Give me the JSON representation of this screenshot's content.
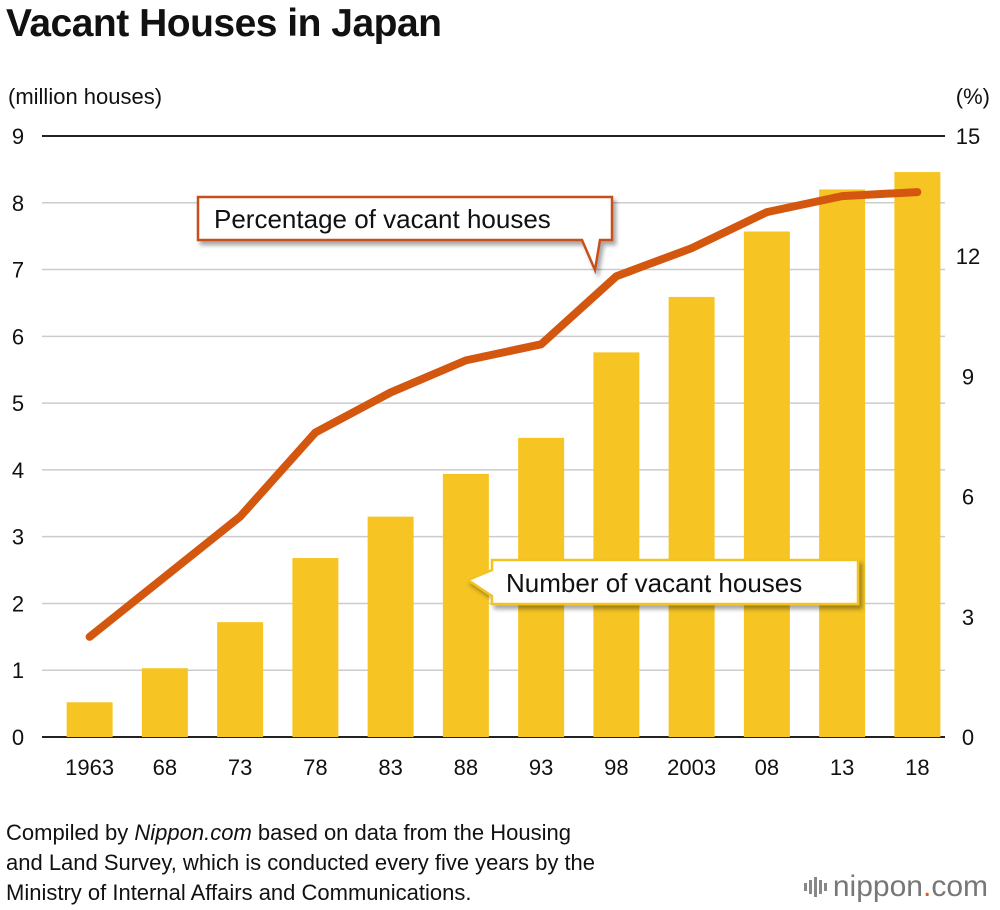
{
  "title": "Vacant Houses in Japan",
  "footer": {
    "line1_pre": "Compiled by ",
    "line1_italic": "Nippon.com",
    "line1_post": " based on data from the Housing",
    "line2": "and Land Survey, which is conducted every five years by the",
    "line3": "Ministry of Internal Affairs and Communications."
  },
  "logo": {
    "name": "nippon",
    "dot": ".",
    "suffix": "com",
    "icon": "sound-wave-icon"
  },
  "colors": {
    "bar": "#f6c524",
    "line": "#d4570f",
    "grid": "#cccccc",
    "axis": "#222222"
  },
  "chart_data": {
    "type": "bar+line",
    "categories": [
      "1963",
      "68",
      "73",
      "78",
      "83",
      "88",
      "93",
      "98",
      "2003",
      "08",
      "13",
      "18"
    ],
    "left_axis": {
      "label": "(million houses)",
      "ylim": [
        0,
        9
      ],
      "ticks": [
        "0",
        "1",
        "2",
        "3",
        "4",
        "5",
        "6",
        "7",
        "8",
        "9"
      ]
    },
    "right_axis": {
      "label": "(%)",
      "ylim": [
        0,
        15
      ],
      "ticks": [
        "0",
        "3",
        "6",
        "9",
        "12",
        "15"
      ]
    },
    "grid": true,
    "series": [
      {
        "name": "Number of vacant houses",
        "type": "bar",
        "axis": "left",
        "values": [
          0.52,
          1.03,
          1.72,
          2.68,
          3.3,
          3.94,
          4.48,
          5.76,
          6.59,
          7.57,
          8.2,
          8.46
        ]
      },
      {
        "name": "Percentage of vacant houses",
        "type": "line",
        "axis": "right",
        "values": [
          2.5,
          4.0,
          5.5,
          7.6,
          8.6,
          9.4,
          9.8,
          11.5,
          12.2,
          13.1,
          13.5,
          13.6
        ]
      }
    ]
  }
}
